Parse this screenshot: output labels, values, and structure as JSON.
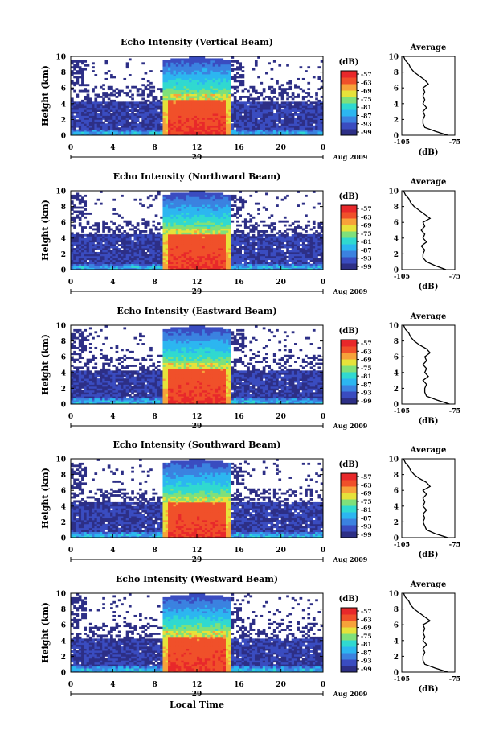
{
  "figure": {
    "x_label": "Local Time",
    "date_label": "Aug 2009",
    "day_label": "29",
    "colorbar_unit": "(dB)",
    "avg_title": "Average",
    "avg_xlabel": "(dB)"
  },
  "chart_data": [
    {
      "type": "heatmap",
      "title": "Echo Intensity (Vertical Beam)",
      "ylabel": "Height (km)",
      "xlabel": "Local Time",
      "x_ticks": [
        "0",
        "4",
        "8",
        "12",
        "16",
        "20",
        "0"
      ],
      "y_ticks": [
        "0",
        "2",
        "4",
        "6",
        "8",
        "10"
      ],
      "xlim": [
        0,
        24
      ],
      "ylim": [
        0,
        10
      ],
      "colorbar_label": "(dB)",
      "colorbar_ticks": [
        "-57",
        "-63",
        "-69",
        "-75",
        "-81",
        "-87",
        "-93",
        "-99"
      ],
      "average_profile": {
        "title": "Average",
        "xlabel": "(dB)",
        "x_ticks": [
          "-105",
          "-75"
        ],
        "y_ticks": [
          "0",
          "2",
          "4",
          "6",
          "8",
          "10"
        ],
        "xlim": [
          -105,
          -75
        ],
        "ylim": [
          0,
          10
        ],
        "height_km": [
          0,
          0.5,
          1,
          1.5,
          2,
          2.5,
          3,
          3.5,
          4,
          4.5,
          5,
          5.5,
          6,
          6.5,
          7,
          7.5,
          8,
          8.5,
          9,
          9.5,
          10
        ],
        "values_db": [
          -79,
          -86,
          -92,
          -93,
          -93,
          -92,
          -93,
          -91,
          -93,
          -92,
          -93,
          -92,
          -93,
          -90,
          -92,
          -95,
          -98,
          -100,
          -101,
          -103,
          -104
        ]
      }
    },
    {
      "type": "heatmap",
      "title": "Echo Intensity (Northward Beam)",
      "ylabel": "Height (km)",
      "xlabel": "Local Time",
      "x_ticks": [
        "0",
        "4",
        "8",
        "12",
        "16",
        "20",
        "0"
      ],
      "y_ticks": [
        "0",
        "2",
        "4",
        "6",
        "8",
        "10"
      ],
      "xlim": [
        0,
        24
      ],
      "ylim": [
        0,
        10
      ],
      "colorbar_label": "(dB)",
      "colorbar_ticks": [
        "-57",
        "-63",
        "-69",
        "-75",
        "-81",
        "-87",
        "-93",
        "-99"
      ],
      "average_profile": {
        "title": "Average",
        "xlabel": "(dB)",
        "x_ticks": [
          "-105",
          "-75"
        ],
        "y_ticks": [
          "0",
          "2",
          "4",
          "6",
          "8",
          "10"
        ],
        "xlim": [
          -105,
          -75
        ],
        "ylim": [
          0,
          10
        ],
        "height_km": [
          0,
          0.5,
          1,
          1.5,
          2,
          2.5,
          3,
          3.5,
          4,
          4.5,
          5,
          5.5,
          6,
          6.5,
          7,
          7.5,
          8,
          8.5,
          9,
          9.5,
          10
        ],
        "values_db": [
          -80,
          -86,
          -91,
          -93,
          -93,
          -92,
          -94,
          -91,
          -93,
          -92,
          -94,
          -92,
          -93,
          -89,
          -92,
          -95,
          -98,
          -100,
          -101,
          -103,
          -104
        ]
      }
    },
    {
      "type": "heatmap",
      "title": "Echo Intensity (Eastward Beam)",
      "ylabel": "Height (km)",
      "xlabel": "Local Time",
      "x_ticks": [
        "0",
        "4",
        "8",
        "12",
        "16",
        "20",
        "0"
      ],
      "y_ticks": [
        "0",
        "2",
        "4",
        "6",
        "8",
        "10"
      ],
      "xlim": [
        0,
        24
      ],
      "ylim": [
        0,
        10
      ],
      "colorbar_label": "(dB)",
      "colorbar_ticks": [
        "-57",
        "-63",
        "-69",
        "-75",
        "-81",
        "-87",
        "-93",
        "-99"
      ],
      "average_profile": {
        "title": "Average",
        "xlabel": "(dB)",
        "x_ticks": [
          "-105",
          "-75"
        ],
        "y_ticks": [
          "0",
          "2",
          "4",
          "6",
          "8",
          "10"
        ],
        "xlim": [
          -105,
          -75
        ],
        "ylim": [
          0,
          10
        ],
        "height_km": [
          0,
          0.5,
          1,
          1.5,
          2,
          2.5,
          3,
          3.5,
          4,
          4.5,
          5,
          5.5,
          6,
          6.5,
          7,
          7.5,
          8,
          8.5,
          9,
          9.5,
          10
        ],
        "values_db": [
          -78,
          -85,
          -91,
          -92,
          -92,
          -91,
          -93,
          -90,
          -92,
          -91,
          -93,
          -91,
          -92,
          -89,
          -91,
          -95,
          -98,
          -100,
          -101,
          -103,
          -104
        ]
      }
    },
    {
      "type": "heatmap",
      "title": "Echo Intensity (Southward Beam)",
      "ylabel": "Height (km)",
      "xlabel": "Local Time",
      "x_ticks": [
        "0",
        "4",
        "8",
        "12",
        "16",
        "20",
        "0"
      ],
      "y_ticks": [
        "0",
        "2",
        "4",
        "6",
        "8",
        "10"
      ],
      "xlim": [
        0,
        24
      ],
      "ylim": [
        0,
        10
      ],
      "colorbar_label": "(dB)",
      "colorbar_ticks": [
        "-57",
        "-63",
        "-69",
        "-75",
        "-81",
        "-87",
        "-93",
        "-99"
      ],
      "average_profile": {
        "title": "Average",
        "xlabel": "(dB)",
        "x_ticks": [
          "-105",
          "-75"
        ],
        "y_ticks": [
          "0",
          "2",
          "4",
          "6",
          "8",
          "10"
        ],
        "xlim": [
          -105,
          -75
        ],
        "ylim": [
          0,
          10
        ],
        "height_km": [
          0,
          0.5,
          1,
          1.5,
          2,
          2.5,
          3,
          3.5,
          4,
          4.5,
          5,
          5.5,
          6,
          6.5,
          7,
          7.5,
          8,
          8.5,
          9,
          9.5,
          10
        ],
        "values_db": [
          -79,
          -86,
          -91,
          -92,
          -93,
          -92,
          -93,
          -91,
          -93,
          -92,
          -93,
          -91,
          -93,
          -89,
          -91,
          -95,
          -98,
          -100,
          -101,
          -103,
          -104
        ]
      }
    },
    {
      "type": "heatmap",
      "title": "Echo Intensity (Westward Beam)",
      "ylabel": "Height (km)",
      "xlabel": "Local Time",
      "x_ticks": [
        "0",
        "4",
        "8",
        "12",
        "16",
        "20",
        "0"
      ],
      "y_ticks": [
        "0",
        "2",
        "4",
        "6",
        "8",
        "10"
      ],
      "xlim": [
        0,
        24
      ],
      "ylim": [
        0,
        10
      ],
      "colorbar_label": "(dB)",
      "colorbar_ticks": [
        "-57",
        "-63",
        "-69",
        "-75",
        "-81",
        "-87",
        "-93",
        "-99"
      ],
      "average_profile": {
        "title": "Average",
        "xlabel": "(dB)",
        "x_ticks": [
          "-105",
          "-75"
        ],
        "y_ticks": [
          "0",
          "2",
          "4",
          "6",
          "8",
          "10"
        ],
        "xlim": [
          -105,
          -75
        ],
        "ylim": [
          0,
          10
        ],
        "height_km": [
          0,
          0.5,
          1,
          1.5,
          2,
          2.5,
          3,
          3.5,
          4,
          4.5,
          5,
          5.5,
          6,
          6.5,
          7,
          7.5,
          8,
          8.5,
          9,
          9.5,
          10
        ],
        "values_db": [
          -79,
          -86,
          -92,
          -93,
          -93,
          -92,
          -93,
          -91,
          -93,
          -92,
          -93,
          -92,
          -93,
          -89,
          -92,
          -95,
          -98,
          -100,
          -101,
          -103,
          -104
        ]
      }
    }
  ],
  "colors": {
    "colormap": [
      "#2d2f86",
      "#3a4cc0",
      "#3b82e0",
      "#2cb6f0",
      "#30d9d0",
      "#7fe07a",
      "#e6e23a",
      "#f7a23a",
      "#f0502a",
      "#e8282a"
    ],
    "background_empty": "#ffffff",
    "axis": "#000000"
  }
}
